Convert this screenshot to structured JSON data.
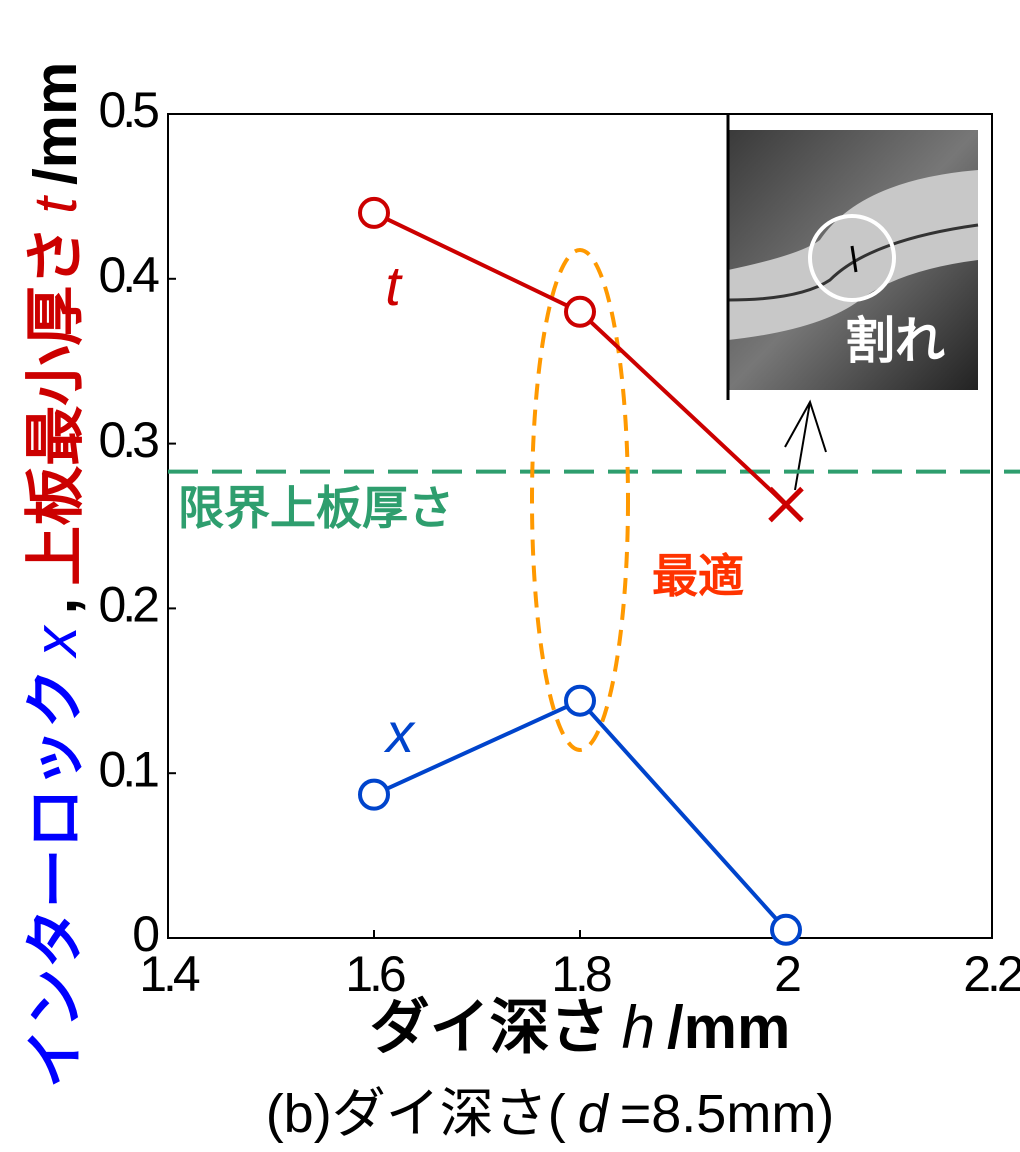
{
  "chart_data": {
    "type": "line",
    "ylabel": [
      {
        "text": "インターロック",
        "color": "#0000ff",
        "italic": false
      },
      {
        "text": "x",
        "color": "#0000ff",
        "italic": true
      },
      {
        "text": ",",
        "color": "#000000",
        "italic": false
      },
      {
        "text": "上板最小厚さ",
        "color": "#cc0000",
        "italic": false
      },
      {
        "text": "t",
        "color": "#cc0000",
        "italic": true
      },
      {
        "text": "/mm",
        "color": "#000000",
        "italic": false
      }
    ],
    "xlabel": [
      {
        "text": "ダイ深さ",
        "italic": false
      },
      {
        "text": "h",
        "italic": true
      },
      {
        "text": "/mm",
        "italic": false
      }
    ],
    "caption": [
      {
        "text": "(b)ダイ深さ(",
        "italic": false
      },
      {
        "text": "d",
        "italic": true
      },
      {
        "text": "=8.5mm)",
        "italic": false
      }
    ],
    "x": [
      1.6,
      1.8,
      2
    ],
    "series": [
      {
        "name": "t",
        "color": "#cc0000",
        "values": [
          0.44,
          0.38,
          0.263
        ],
        "markers": [
          "circle",
          "circle",
          "cross"
        ]
      },
      {
        "name": "x",
        "color": "#0044cc",
        "values": [
          0.087,
          0.144,
          0.005
        ],
        "markers": [
          "circle",
          "circle",
          "circle"
        ]
      }
    ],
    "xlim": [
      1.4,
      2.2
    ],
    "ylim": [
      0,
      0.5
    ],
    "xticks": [
      1.4,
      1.6,
      1.8,
      2,
      2.2
    ],
    "yticks": [
      0,
      0.1,
      0.2,
      0.3,
      0.4,
      0.5
    ],
    "reference_line": {
      "label": "限界上板厚さ",
      "value": 0.283,
      "color": "#2e9e6e"
    },
    "optimum": {
      "label": "最適",
      "x": 1.8,
      "color": "#ff3300",
      "ellipse_color": "#ff9900"
    },
    "inset_label": "割れ"
  }
}
